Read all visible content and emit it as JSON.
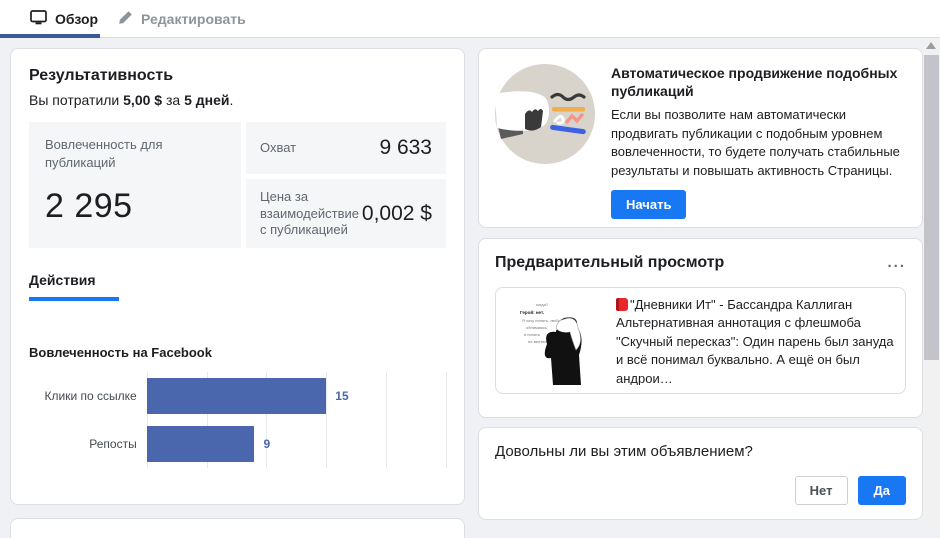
{
  "tabs": {
    "overview": "Обзор",
    "edit": "Редактировать"
  },
  "performance": {
    "title": "Результативность",
    "spent_prefix": "Вы потратили ",
    "spent_amount": "5,00 $",
    "spent_middle": " за ",
    "spent_duration": "5 дней",
    "spent_suffix": ".",
    "metrics": {
      "engagement_label": "Вовлеченность для публикаций",
      "engagement_value": "2 295",
      "reach_label": "Охват",
      "reach_value": "9 633",
      "cost_label": "Цена за взаимодействие с публикацией",
      "cost_value": "0,002 $"
    },
    "actions_tab": "Действия"
  },
  "chart_data": {
    "type": "bar",
    "orientation": "horizontal",
    "title": "Вовлеченность на Facebook",
    "categories": [
      "Клики по ссылке",
      "Репосты"
    ],
    "values": [
      15,
      9
    ],
    "xlim": [
      0,
      25
    ],
    "gridline_step": 5,
    "bar_color": "#4a67ad",
    "grid": true,
    "value_labels": true
  },
  "promo": {
    "title": "Автоматическое продвижение подобных публикаций",
    "body": "Если вы позволите нам автоматически продвигать публикации с подобным уровнем вовлеченности, то будете получать стабильные результаты и повышать активность Страницы.",
    "button": "Начать",
    "icon": "megaphone-illustration",
    "accent_color": "#1877f2"
  },
  "preview": {
    "title": "Предварительный просмотр",
    "more": "...",
    "post_icon": "red-book-icon",
    "post_text": "\"Дневники Ит\" - Бассандра Каллиган Альтернативная аннотация с флешмоба \"Скучный пересказ\": Один парень был зануда и всё понимал буквально. А ещё он был андрои…"
  },
  "feedback": {
    "question": "Довольны ли вы этим объявлением?",
    "no_label": "Нет",
    "yes_label": "Да"
  },
  "colors": {
    "active_tab_underline": "#3b5998",
    "actions_underline": "#1877f2",
    "bar": "#4a67ad",
    "primary_button": "#1877f2",
    "card_bg": "#ffffff",
    "page_bg": "#eff1f4",
    "metric_box_bg": "#f5f6f7"
  }
}
